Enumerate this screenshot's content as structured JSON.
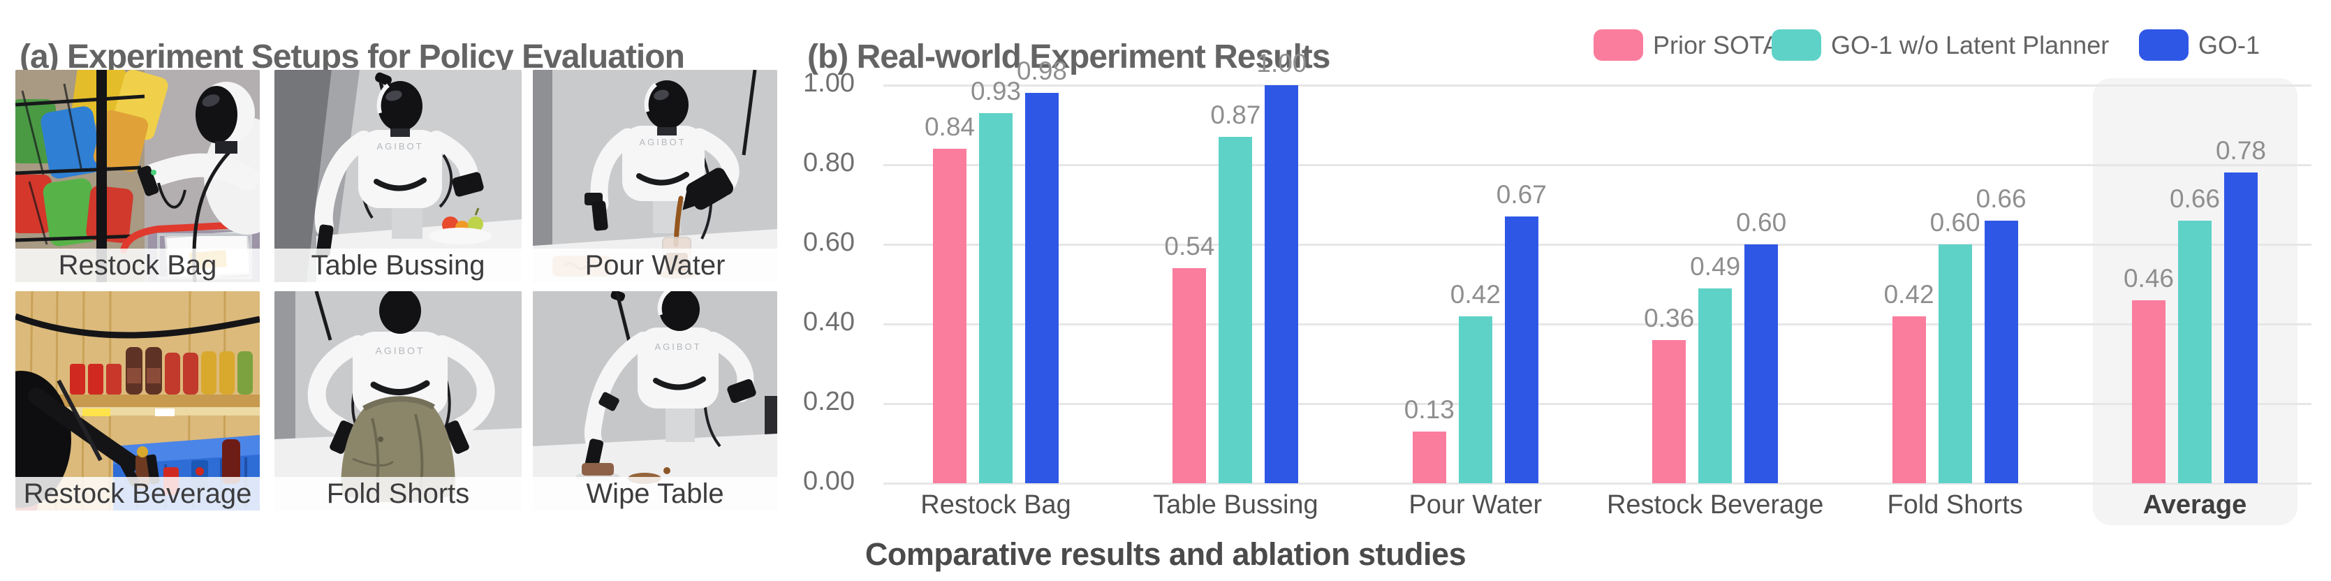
{
  "panel_a": {
    "title": "(a) Experiment Setups for Policy Evaluation",
    "setups": [
      {
        "label": "Restock Bag"
      },
      {
        "label": "Table Bussing"
      },
      {
        "label": "Pour Water"
      },
      {
        "label": "Restock Beverage"
      },
      {
        "label": "Fold Shorts"
      },
      {
        "label": "Wipe Table"
      }
    ]
  },
  "panel_b": {
    "title": "(b) Real-world Experiment Results",
    "legend": [
      {
        "label": "Prior SOTA",
        "color": "#FA7D9D"
      },
      {
        "label": "GO-1 w/o Latent Planner",
        "color": "#5FD2C7"
      },
      {
        "label": "GO-1",
        "color": "#2F57E6"
      }
    ]
  },
  "caption": "Comparative results and ablation studies",
  "colors": {
    "grid_line": "#e6e6e8",
    "tick_label": "#6f6f6f",
    "value_label": "#8e8e8e",
    "category_label": "#4f4f4f",
    "average_highlight": "#f4f4f5"
  },
  "chart_data": {
    "type": "bar",
    "title": "(b) Real-world Experiment Results",
    "categories": [
      "Restock Bag",
      "Table Bussing",
      "Pour Water",
      "Restock Beverage",
      "Fold Shorts",
      "Average"
    ],
    "series": [
      {
        "name": "Prior SOTA",
        "color": "#FA7D9D",
        "values": [
          0.84,
          0.54,
          0.13,
          0.36,
          0.42,
          0.46
        ]
      },
      {
        "name": "GO-1 w/o Latent Planner",
        "color": "#5FD2C7",
        "values": [
          0.93,
          0.87,
          0.42,
          0.49,
          0.6,
          0.66
        ]
      },
      {
        "name": "GO-1",
        "color": "#2F57E6",
        "values": [
          0.98,
          1.0,
          0.67,
          0.6,
          0.66,
          0.78
        ]
      }
    ],
    "xlabel": "",
    "ylabel": "",
    "ylim": [
      0,
      1.0
    ],
    "yticks": [
      0,
      0.2,
      0.4,
      0.6,
      0.8,
      1.0
    ],
    "grid": true,
    "legend_position": "top-right",
    "highlighted_category": "Average",
    "value_labels": true,
    "value_label_format": "0.00"
  }
}
